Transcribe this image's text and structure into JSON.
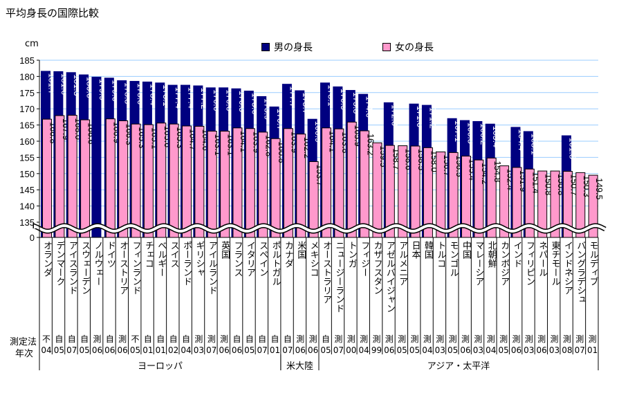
{
  "title": "平均身長の国際比較",
  "chart_data": {
    "type": "bar",
    "unit": "cm",
    "ylim": [
      135,
      185
    ],
    "yticks": [
      0,
      135,
      140,
      145,
      150,
      155,
      160,
      165,
      170,
      175,
      180,
      185
    ],
    "axis_break": true,
    "grid": true,
    "legend_placement": "top",
    "colors": {
      "male": "#000080",
      "female": "#ff99cc",
      "grid": "#99ccff"
    },
    "series": [
      {
        "name": "男の身長",
        "key": "male"
      },
      {
        "name": "女の身長",
        "key": "female"
      }
    ],
    "row_labels": {
      "method": "測定法",
      "year": "年次"
    },
    "categories": [
      {
        "name": "オランダ",
        "male": 181.7,
        "female": 166.8,
        "method": "不",
        "year": "04"
      },
      {
        "name": "デンマーク",
        "male": 181.6,
        "female": 167.9,
        "method": "自",
        "year": "05"
      },
      {
        "name": "アイスランド",
        "male": 181.3,
        "female": 168.0,
        "method": "自",
        "year": "07"
      },
      {
        "name": "スウェーデン",
        "male": 180.6,
        "female": 166.6,
        "method": "自",
        "year": "05"
      },
      {
        "name": "ノルウェー",
        "male": 179.9,
        "female": null,
        "method": "測",
        "year": "06"
      },
      {
        "name": "ドイツ",
        "male": 179.6,
        "female": 166.9,
        "method": "自",
        "year": "06"
      },
      {
        "name": "オーストリア",
        "male": 178.8,
        "female": 166.3,
        "method": "測",
        "year": "06"
      },
      {
        "name": "フィンランド",
        "male": 178.6,
        "female": 165.3,
        "method": "不",
        "year": "05"
      },
      {
        "name": "チェコ",
        "male": 178.4,
        "female": 165.1,
        "method": "自",
        "year": "01"
      },
      {
        "name": "ベルギー",
        "male": 178.1,
        "female": 165.6,
        "method": "自",
        "year": "01"
      },
      {
        "name": "スイス",
        "male": 177.4,
        "female": 165.3,
        "method": "自",
        "year": "02"
      },
      {
        "name": "ポーランド",
        "male": 177.4,
        "female": 164.7,
        "method": "自",
        "year": "04"
      },
      {
        "name": "ギリシャ",
        "male": 177.2,
        "female": 164.6,
        "method": "測",
        "year": "03"
      },
      {
        "name": "アイルランド",
        "male": 176.6,
        "female": 163.1,
        "method": "測",
        "year": "07"
      },
      {
        "name": "英国",
        "male": 176.6,
        "female": 163.1,
        "method": "測",
        "year": "06"
      },
      {
        "name": "フランス",
        "male": 176.3,
        "female": 164.1,
        "method": "自",
        "year": "06"
      },
      {
        "name": "イタリア",
        "male": 175.6,
        "female": 163.9,
        "method": "自",
        "year": "05"
      },
      {
        "name": "スペイン",
        "male": 173.9,
        "female": 162.8,
        "method": "自",
        "year": "07"
      },
      {
        "name": "ポルトガル",
        "male": 170.7,
        "female": 160.8,
        "method": "自",
        "year": "01"
      },
      {
        "name": "カナダ",
        "male": 177.7,
        "female": 163.9,
        "method": "自",
        "year": "07"
      },
      {
        "name": "米国",
        "male": 175.7,
        "female": 162.2,
        "method": "測",
        "year": "06"
      },
      {
        "name": "メキシコ",
        "male": 166.9,
        "female": 153.7,
        "method": "測",
        "year": "06"
      },
      {
        "name": "オーストラリア",
        "male": 178.1,
        "female": 164.1,
        "method": "自",
        "year": "05"
      },
      {
        "name": "ニュージーランド",
        "male": 176.9,
        "female": 163.8,
        "method": "測",
        "year": "07"
      },
      {
        "name": "トンガ",
        "male": 175.8,
        "female": 165.9,
        "method": "測",
        "year": "00"
      },
      {
        "name": "フィジー",
        "male": 174.6,
        "female": 163.2,
        "method": "測",
        "year": "04"
      },
      {
        "name": "カザフスタン",
        "male": null,
        "female": 159.5,
        "method": "測",
        "year": "99"
      },
      {
        "name": "アゼルバイジャン",
        "male": 172.0,
        "female": 158.7,
        "method": "測",
        "year": "06"
      },
      {
        "name": "アルメニア",
        "male": null,
        "female": 158.6,
        "method": "測",
        "year": "05"
      },
      {
        "name": "日本",
        "male": 171.6,
        "female": 158.5,
        "method": "測",
        "year": "05"
      },
      {
        "name": "韓国",
        "male": 171.2,
        "female": 158.0,
        "method": "測",
        "year": "04"
      },
      {
        "name": "トルコ",
        "male": null,
        "female": 156.7,
        "method": "測",
        "year": "03"
      },
      {
        "name": "モンゴル",
        "male": 167.1,
        "female": 156.5,
        "method": "測",
        "year": "05"
      },
      {
        "name": "中国",
        "male": 166.5,
        "female": 155.4,
        "method": "測",
        "year": "06"
      },
      {
        "name": "マレーシア",
        "male": 166.2,
        "female": 154.2,
        "method": "測",
        "year": "03"
      },
      {
        "name": "北朝鮮",
        "male": 165.4,
        "female": 154.8,
        "method": "測",
        "year": "04"
      },
      {
        "name": "カンボジア",
        "male": null,
        "female": 152.4,
        "method": "測",
        "year": "05"
      },
      {
        "name": "インド",
        "male": 164.4,
        "female": 151.9,
        "method": "測",
        "year": "06"
      },
      {
        "name": "フィリピン",
        "male": 163.1,
        "female": 151.4,
        "method": "測",
        "year": "03"
      },
      {
        "name": "ネパール",
        "male": null,
        "female": 150.8,
        "method": "測",
        "year": "06"
      },
      {
        "name": "東チモール",
        "male": null,
        "female": 150.8,
        "method": "測",
        "year": "03"
      },
      {
        "name": "インドネシア",
        "male": 161.8,
        "female": 150.7,
        "method": "測",
        "year": "08"
      },
      {
        "name": "バングラデシュ",
        "male": null,
        "female": 150.3,
        "method": "測",
        "year": "07"
      },
      {
        "name": "モルディブ",
        "male": null,
        "female": 149.5,
        "method": "測",
        "year": "01"
      }
    ],
    "regions": [
      {
        "name": "ヨーロッパ",
        "count": 19
      },
      {
        "name": "米大陸",
        "count": 3
      },
      {
        "name": "アジア・太平洋",
        "count": 22
      }
    ]
  }
}
